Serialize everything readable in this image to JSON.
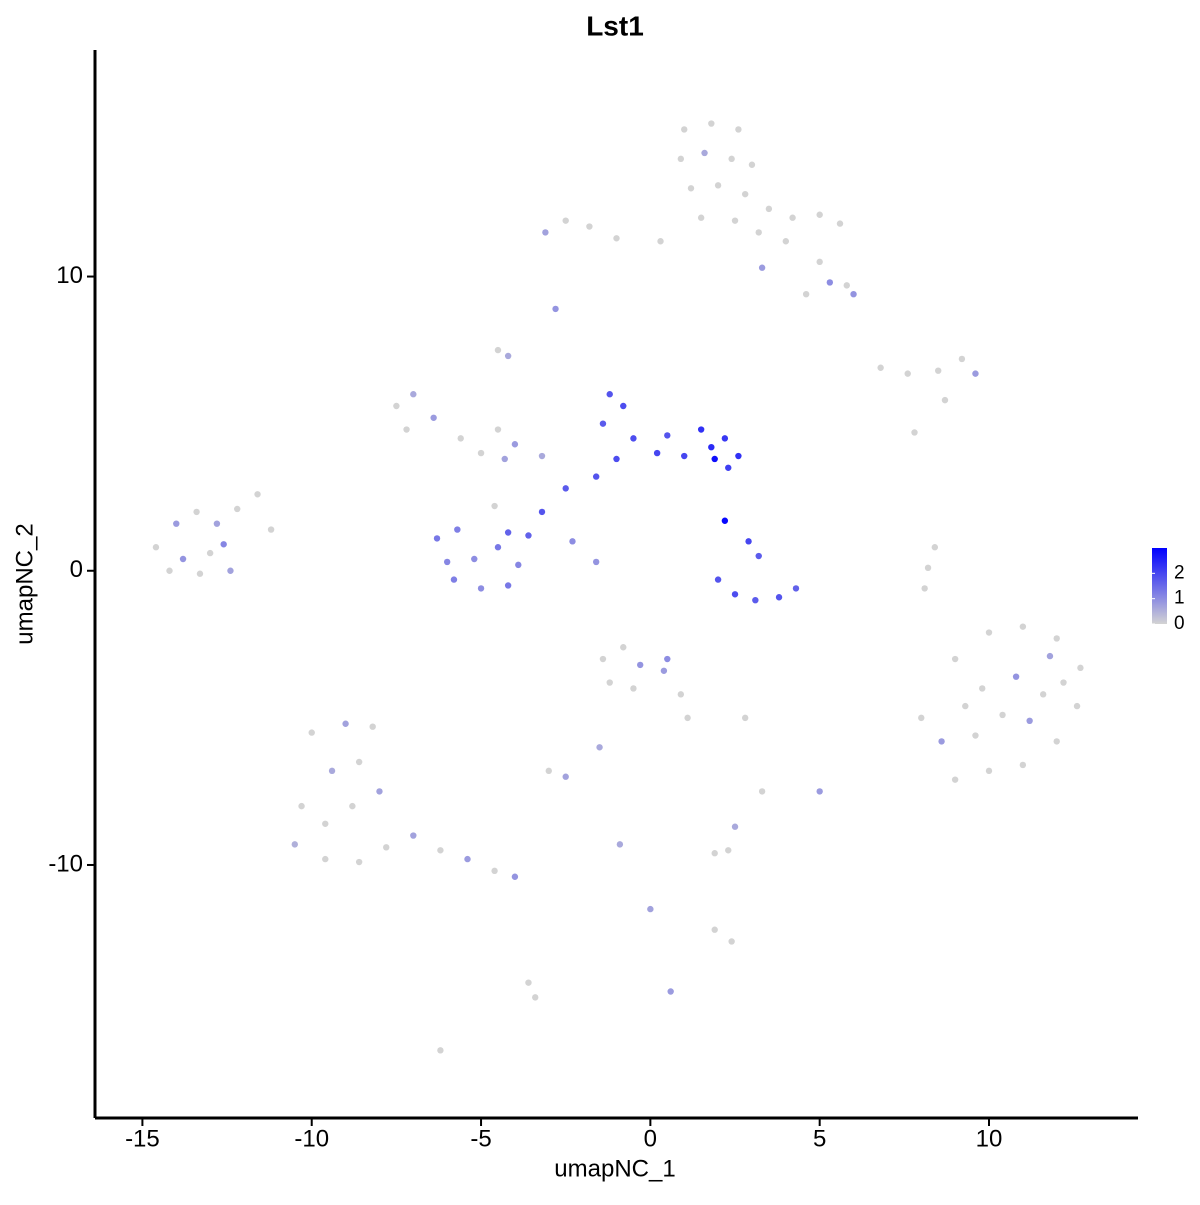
{
  "chart_data": {
    "type": "scatter",
    "title": "Lst1",
    "x_label": "umapNC_1",
    "y_label": "umapNC_2",
    "xlim": [
      -16.4,
      14.4
    ],
    "ylim": [
      -18.6,
      17.7
    ],
    "xticks": [
      -15,
      -10,
      -5,
      0,
      5,
      10
    ],
    "yticks": [
      -10,
      0,
      10
    ],
    "colors": [
      "#d3d3d3",
      "#0000ff"
    ],
    "clim": [
      0,
      3
    ],
    "colorbar_ticks": [
      0,
      1,
      2
    ],
    "x": [
      1.0,
      1.8,
      2.6,
      0.9,
      1.6,
      2.4,
      3.0,
      1.2,
      2.0,
      2.8,
      3.5,
      4.2,
      5.0,
      5.6,
      4.0,
      5.0,
      5.8,
      4.6,
      5.3,
      3.2,
      2.5,
      1.5,
      0.3,
      -1.0,
      -2.5,
      -3.1,
      -1.8,
      3.3,
      6.0,
      6.8,
      7.6,
      8.5,
      9.2,
      9.6,
      8.7,
      7.8,
      -14.6,
      -14.0,
      -13.4,
      -12.8,
      -12.2,
      -11.6,
      -11.2,
      -13.8,
      -13.0,
      -12.4,
      -14.2,
      -12.6,
      -13.3,
      -7.5,
      -7.0,
      -6.4,
      -7.2,
      -5.6,
      -5.0,
      -4.3,
      -4.0,
      -4.5,
      -3.2,
      -4.6,
      -4.2,
      -2.8,
      -4.5,
      -6.3,
      -5.7,
      -5.2,
      -4.5,
      -3.9,
      -4.2,
      -5.8,
      -5.0,
      -4.2,
      -6.0,
      -3.6,
      -3.2,
      -2.5,
      -1.6,
      -1.0,
      -1.4,
      -0.8,
      -1.2,
      -0.5,
      0.2,
      0.5,
      1.0,
      1.5,
      1.8,
      2.2,
      2.6,
      2.3,
      1.9,
      2.2,
      2.9,
      3.2,
      2.0,
      2.5,
      3.1,
      3.8,
      4.3,
      -2.3,
      -1.6,
      -1.4,
      -0.8,
      -0.3,
      0.4,
      0.9,
      1.1,
      -0.5,
      -1.2,
      0.5,
      -1.5,
      -3.0,
      -2.5,
      2.3,
      1.9,
      2.5,
      3.3,
      5.0,
      2.4,
      1.9,
      -3.4,
      -3.6,
      0.6,
      -0.9,
      0,
      -6.2,
      2.8,
      8.4,
      8.2,
      8.1,
      9.0,
      10.0,
      11.0,
      12.0,
      12.7,
      12.6,
      12.0,
      11.0,
      10.0,
      9.0,
      8.0,
      8.6,
      9.8,
      10.8,
      11.6,
      11.2,
      9.6,
      10.4,
      12.2,
      11.8,
      9.3,
      -10.0,
      -9.0,
      -8.2,
      -8.6,
      -9.4,
      -10.3,
      -10.5,
      -9.6,
      -8.6,
      -7.8,
      -7.0,
      -6.2,
      -5.4,
      -4.6,
      -4.0,
      -8.8,
      -8.0,
      -9.6
    ],
    "y": [
      15.0,
      15.2,
      15.0,
      14.0,
      14.2,
      14.0,
      13.8,
      13.0,
      13.1,
      12.8,
      12.3,
      12.0,
      12.1,
      11.8,
      11.2,
      10.5,
      9.7,
      9.4,
      9.8,
      11.5,
      11.9,
      12.0,
      11.2,
      11.3,
      11.9,
      11.5,
      11.7,
      10.3,
      9.4,
      6.9,
      6.7,
      6.8,
      7.2,
      6.7,
      5.8,
      4.7,
      0.8,
      1.6,
      2.0,
      1.6,
      2.1,
      2.6,
      1.4,
      0.4,
      0.6,
      0.0,
      0.0,
      0.9,
      -0.1,
      5.6,
      6.0,
      5.2,
      4.8,
      4.5,
      4.0,
      3.8,
      4.3,
      4.8,
      3.9,
      2.2,
      7.3,
      8.9,
      7.5,
      1.1,
      1.4,
      0.4,
      0.8,
      0.2,
      1.3,
      -0.3,
      -0.6,
      -0.5,
      0.3,
      1.2,
      2.0,
      2.8,
      3.2,
      3.8,
      5.0,
      5.6,
      6.0,
      4.5,
      4.0,
      4.6,
      3.9,
      4.8,
      4.2,
      4.5,
      3.9,
      3.5,
      3.8,
      1.7,
      1.0,
      0.5,
      -0.3,
      -0.8,
      -1.0,
      -0.9,
      -0.6,
      1.0,
      0.3,
      -3.0,
      -2.6,
      -3.2,
      -3.4,
      -4.2,
      -5.0,
      -4.0,
      -3.8,
      -3.0,
      -6.0,
      -6.8,
      -7.0,
      -9.5,
      -9.6,
      -8.7,
      -7.5,
      -7.5,
      -12.6,
      -12.2,
      -14.5,
      -14.0,
      -14.3,
      -9.3,
      -11.5,
      -16.3,
      -5.0,
      0.8,
      0.1,
      -0.6,
      -3.0,
      -2.1,
      -1.9,
      -2.3,
      -3.3,
      -4.6,
      -5.8,
      -6.6,
      -6.8,
      -7.1,
      -5.0,
      -5.8,
      -4.0,
      -3.6,
      -4.2,
      -5.1,
      -5.6,
      -4.9,
      -3.8,
      -2.9,
      -4.6,
      -5.5,
      -5.2,
      -5.3,
      -6.5,
      -6.8,
      -8.0,
      -9.3,
      -9.8,
      -9.9,
      -9.4,
      -9.0,
      -9.5,
      -9.8,
      -10.2,
      -10.4,
      -8.0,
      -7.5,
      -8.6
    ],
    "values": [
      0,
      0,
      0,
      0,
      0.6,
      0,
      0,
      0,
      0,
      0,
      0,
      0,
      0,
      0,
      0,
      0,
      0,
      0,
      1.0,
      0,
      0,
      0,
      0,
      0,
      0,
      0.7,
      0,
      0.8,
      0.9,
      0,
      0,
      0,
      0,
      0.8,
      0,
      0,
      0,
      0.8,
      0,
      0.7,
      0,
      0,
      0,
      0.9,
      0,
      0.7,
      0,
      1.1,
      0,
      0,
      0.6,
      0.8,
      0,
      0,
      0,
      0.7,
      0.8,
      0,
      0.6,
      0,
      0.6,
      0.9,
      0,
      1.3,
      1.2,
      1.0,
      1.3,
      1.1,
      1.6,
      1.2,
      1.0,
      1.3,
      1.1,
      1.6,
      1.8,
      1.7,
      1.8,
      1.9,
      1.7,
      1.9,
      1.8,
      1.9,
      2.0,
      1.8,
      2.0,
      2.3,
      2.4,
      2.2,
      2.3,
      2.1,
      2.8,
      2.9,
      2.0,
      1.7,
      1.8,
      1.9,
      1.7,
      1.8,
      1.6,
      1.0,
      0.9,
      0,
      0,
      0.9,
      0.8,
      0,
      0,
      0,
      0,
      1.0,
      0.6,
      0,
      0.7,
      0,
      0,
      0.6,
      0,
      0.8,
      0,
      0,
      0,
      0,
      0.8,
      0.6,
      0.7,
      0,
      0,
      0,
      0,
      0,
      0,
      0,
      0,
      0,
      0,
      0,
      0,
      0,
      0,
      0,
      0,
      0.8,
      0,
      0.9,
      0,
      0.8,
      0,
      0,
      0,
      0.7,
      0,
      0,
      0.7,
      0,
      0,
      0.6,
      0,
      0.5,
      0,
      0,
      0,
      0.7,
      0,
      0.8,
      0,
      0.9,
      0,
      0.7,
      0
    ]
  }
}
